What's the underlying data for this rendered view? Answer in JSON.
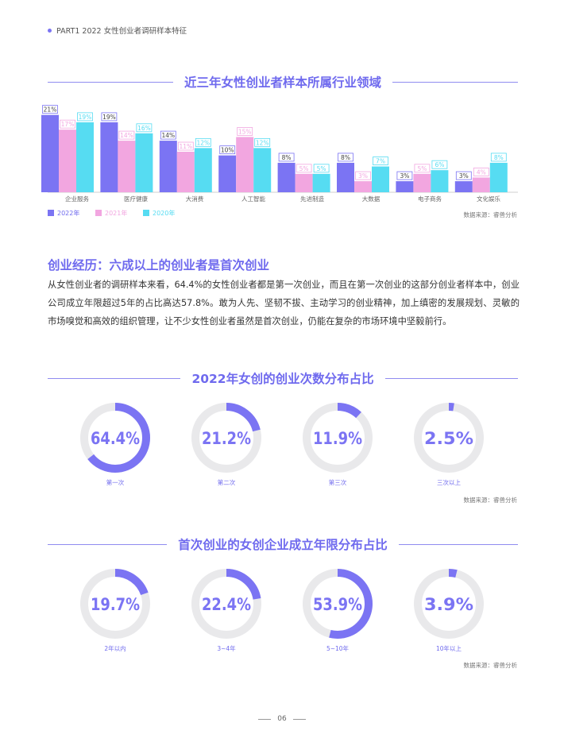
{
  "header": {
    "text": "PART1  2022 女性创业者调研样本特征"
  },
  "section1": {
    "title": "近三年女性创业者样本所属行业领域",
    "source": "数据来源：睿兽分析"
  },
  "chart_data": [
    {
      "type": "bar",
      "title": "近三年女性创业者样本所属行业领域",
      "categories": [
        "企业服务",
        "医疗健康",
        "大消费",
        "人工智能",
        "先进制造",
        "大数据",
        "电子商务",
        "文化娱乐"
      ],
      "series": [
        {
          "name": "2022年",
          "values": [
            21,
            19,
            14,
            10,
            8,
            8,
            3,
            3
          ],
          "color": "#7B74F3"
        },
        {
          "name": "2021年",
          "values": [
            17,
            14,
            11,
            15,
            5,
            3,
            5,
            4
          ],
          "color": "#F2A6E0"
        },
        {
          "name": "2020年",
          "values": [
            19,
            16,
            12,
            12,
            5,
            7,
            6,
            8
          ],
          "color": "#56DCF2"
        }
      ],
      "value_suffix": "%",
      "ylim": [
        0,
        22
      ],
      "legend": "bottom-left",
      "grid": false
    },
    {
      "type": "pie",
      "title": "2022年女创的创业次数分布占比",
      "categories": [
        "第一次",
        "第二次",
        "第三次",
        "三次以上"
      ],
      "values": [
        64.4,
        21.2,
        11.9,
        2.5
      ],
      "labels": [
        "64.4%",
        "21.2%",
        "11.9%",
        "2.5%"
      ]
    },
    {
      "type": "pie",
      "title": "首次创业的女创企业成立年限分布占比",
      "categories": [
        "2年以内",
        "3~4年",
        "5~10年",
        "10年以上"
      ],
      "values": [
        19.7,
        22.4,
        53.9,
        3.9
      ],
      "labels": [
        "19.7%",
        "22.4%",
        "53.9%",
        "3.9%"
      ]
    }
  ],
  "colors": {
    "accent": "#7B74F3",
    "pink": "#F2A6E0",
    "cyan": "#56DCF2",
    "track": "#E9E9EB"
  },
  "experience": {
    "heading": "创业经历：六成以上的创业者是首次创业",
    "paragraph": "从女性创业者的调研样本来看，64.4%的女性创业者都是第一次创业，而且在第一次创业的这部分创业者样本中，创业公司成立年限超过5年的占比高达57.8%。敢为人先、坚韧不拔、主动学习的创业精神，加上缜密的发展规划、灵敏的市场嗅觉和高效的组织管理，让不少女性创业者虽然是首次创业，仍能在复杂的市场环境中坚毅前行。"
  },
  "section2": {
    "title": "2022年女创的创业次数分布占比",
    "source": "数据来源：睿兽分析"
  },
  "section3": {
    "title": "首次创业的女创企业成立年限分布占比",
    "source": "数据来源：睿兽分析"
  },
  "footer": {
    "page": "06"
  }
}
